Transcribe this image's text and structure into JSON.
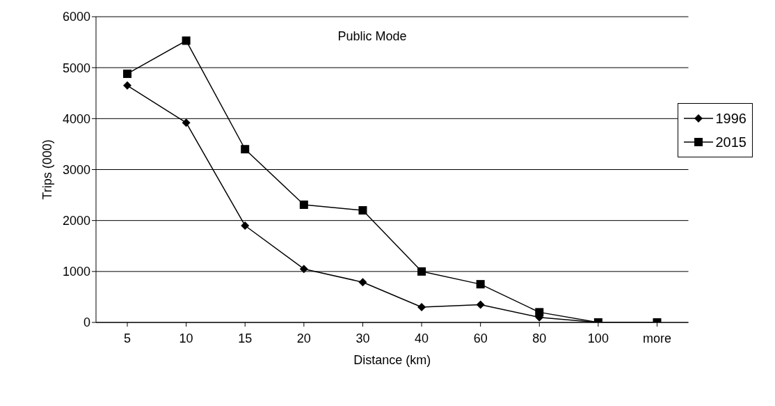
{
  "chart_data": {
    "type": "line",
    "title": "Public Mode",
    "xlabel": "Distance (km)",
    "ylabel": "Trips (000)",
    "categories": [
      "5",
      "10",
      "15",
      "20",
      "30",
      "40",
      "60",
      "80",
      "100",
      "more"
    ],
    "series": [
      {
        "name": "1996",
        "color": "#000000",
        "marker": "diamond",
        "values": [
          4650,
          3920,
          1900,
          1050,
          790,
          300,
          350,
          100,
          0,
          0
        ]
      },
      {
        "name": "2015",
        "color": "#000000",
        "marker": "square",
        "values": [
          4880,
          5530,
          3400,
          2310,
          2200,
          1000,
          750,
          200,
          0,
          0
        ]
      }
    ],
    "ylim": [
      0,
      6000
    ],
    "yticks": [
      0,
      1000,
      2000,
      3000,
      4000,
      5000,
      6000
    ],
    "grid": "y",
    "legend": "right",
    "line_style": "solid"
  }
}
